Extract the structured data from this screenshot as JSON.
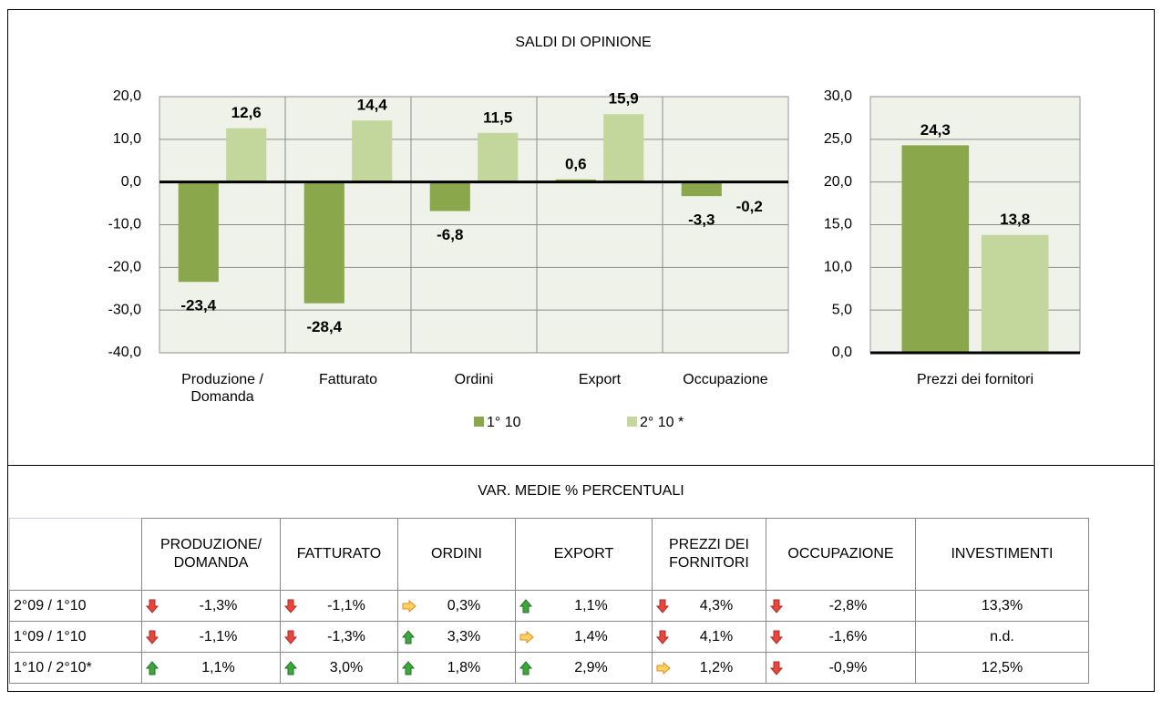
{
  "chart_data": [
    {
      "type": "bar",
      "title": "SALDI DI OPINIONE",
      "categories": [
        "Produzione /\nDomanda",
        "Fatturato",
        "Ordini",
        "Export",
        "Occupazione"
      ],
      "series": [
        {
          "name": "1° 10",
          "color": "#8aa74c",
          "values": [
            -23.4,
            -28.4,
            -6.8,
            0.6,
            -3.3
          ],
          "value_labels": [
            "-23,4",
            "-28,4",
            "-6,8",
            "0,6",
            "-3,3"
          ]
        },
        {
          "name": "2° 10 *",
          "color": "#c3d69b",
          "values": [
            12.6,
            14.4,
            11.5,
            15.9,
            -0.2
          ],
          "value_labels": [
            "12,6",
            "14,4",
            "11,5",
            "15,9",
            "-0,2"
          ]
        }
      ],
      "ylim": [
        -40,
        20
      ],
      "yticks": [
        {
          "value": -40,
          "label": "-40,0"
        },
        {
          "value": -30,
          "label": "-30,0"
        },
        {
          "value": -20,
          "label": "-20,0"
        },
        {
          "value": -10,
          "label": "-10,0"
        },
        {
          "value": 0,
          "label": "0,0"
        },
        {
          "value": 10,
          "label": "10,0"
        },
        {
          "value": 20,
          "label": "20,0"
        }
      ],
      "grid": true,
      "legend": "bottom"
    },
    {
      "type": "bar",
      "categories": [
        "Prezzi dei fornitori"
      ],
      "series": [
        {
          "color": "#8aa74c",
          "values": [
            24.3
          ],
          "value_labels": [
            "24,3"
          ]
        },
        {
          "color": "#c3d69b",
          "values": [
            13.8
          ],
          "value_labels": [
            "13,8"
          ]
        }
      ],
      "ylim": [
        0,
        30
      ],
      "yticks": [
        {
          "value": 0,
          "label": "0,0"
        },
        {
          "value": 5,
          "label": "5,0"
        },
        {
          "value": 10,
          "label": "10,0"
        },
        {
          "value": 15,
          "label": "15,0"
        },
        {
          "value": 20,
          "label": "20,0"
        },
        {
          "value": 25,
          "label": "25,0"
        },
        {
          "value": 30,
          "label": "30,0"
        }
      ],
      "grid": true
    }
  ],
  "table": {
    "title": "VAR. MEDIE % PERCENTUALI",
    "columns": [
      "PRODUZIONE/\nDOMANDA",
      "FATTURATO",
      "ORDINI",
      "EXPORT",
      "PREZZI DEI\nFORNITORI",
      "OCCUPAZIONE",
      "INVESTIMENTI"
    ],
    "rows": [
      {
        "label": "2°09 / 1°10",
        "cells": [
          {
            "arrow": "down",
            "text": "-1,3%"
          },
          {
            "arrow": "down",
            "text": "-1,1%"
          },
          {
            "arrow": "right",
            "text": "0,3%"
          },
          {
            "arrow": "up",
            "text": "1,1%"
          },
          {
            "arrow": "down",
            "text": "4,3%"
          },
          {
            "arrow": "down",
            "text": "-2,8%"
          },
          {
            "text": "13,3%"
          }
        ]
      },
      {
        "label": "1°09 / 1°10",
        "cells": [
          {
            "arrow": "down",
            "text": "-1,1%"
          },
          {
            "arrow": "down",
            "text": "-1,3%"
          },
          {
            "arrow": "up",
            "text": "3,3%"
          },
          {
            "arrow": "right",
            "text": "1,4%"
          },
          {
            "arrow": "down",
            "text": "4,1%"
          },
          {
            "arrow": "down",
            "text": "-1,6%"
          },
          {
            "text": "n.d."
          }
        ]
      },
      {
        "label": "1°10 / 2°10*",
        "cells": [
          {
            "arrow": "up",
            "text": "1,1%"
          },
          {
            "arrow": "up",
            "text": "3,0%"
          },
          {
            "arrow": "up",
            "text": "1,8%"
          },
          {
            "arrow": "up",
            "text": "2,9%"
          },
          {
            "arrow": "right",
            "text": "1,2%"
          },
          {
            "arrow": "down",
            "text": "-0,9%"
          },
          {
            "text": "12,5%"
          }
        ]
      }
    ]
  }
}
